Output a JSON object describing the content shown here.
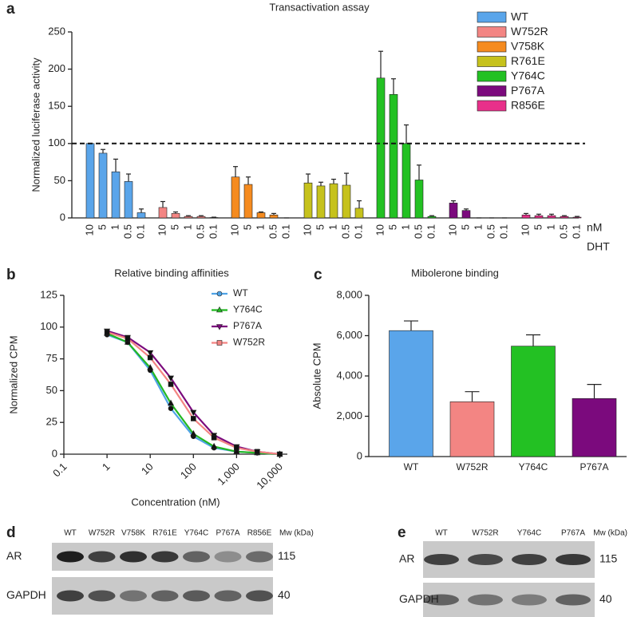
{
  "chart_data": [
    {
      "type": "bar",
      "panel": "a",
      "title": "Transactivation assay",
      "y_label": "Normalized luciferase activity",
      "categories": [
        "10",
        "5",
        "1",
        "0.5",
        "0.1"
      ],
      "x_unit_labels": [
        "nM",
        "DHT"
      ],
      "series": [
        {
          "name": "WT",
          "color": "#5aa5ea",
          "values": [
            100,
            87,
            62,
            49,
            7
          ],
          "errors": [
            0,
            5,
            17,
            10,
            5
          ]
        },
        {
          "name": "W752R",
          "color": "#f38583",
          "values": [
            14,
            6,
            2,
            2,
            0.5
          ],
          "errors": [
            8,
            2,
            1,
            1,
            0.5
          ]
        },
        {
          "name": "V758K",
          "color": "#f58b1f",
          "values": [
            55,
            45,
            7,
            4,
            0
          ],
          "errors": [
            14,
            10,
            1,
            2,
            0
          ]
        },
        {
          "name": "R761E",
          "color": "#c6c21c",
          "values": [
            47,
            43,
            46,
            44,
            13
          ],
          "errors": [
            12,
            5,
            6,
            16,
            10
          ]
        },
        {
          "name": "Y764C",
          "color": "#23c123",
          "values": [
            188,
            166,
            100,
            51,
            2
          ],
          "errors": [
            36,
            21,
            25,
            20,
            1
          ]
        },
        {
          "name": "P767A",
          "color": "#7b0a7d",
          "values": [
            20,
            10,
            0,
            0,
            0
          ],
          "errors": [
            3,
            2,
            0,
            0,
            0
          ]
        },
        {
          "name": "R856E",
          "color": "#e8308a",
          "values": [
            4,
            3,
            3,
            2,
            1
          ],
          "errors": [
            2,
            2,
            2,
            1,
            1
          ]
        }
      ],
      "ylim": [
        0,
        250
      ],
      "yticks": [
        0,
        50,
        100,
        150,
        200,
        250
      ],
      "reference_line": 100,
      "legend": "top-right"
    },
    {
      "type": "line",
      "panel": "b",
      "title": "Relative binding affinities",
      "x_label": "Concentration (nM)",
      "y_label": "Normalized CPM",
      "x": [
        1,
        3,
        10,
        30,
        100,
        300,
        1000,
        3000,
        10000
      ],
      "log_x": true,
      "series": [
        {
          "name": "WT",
          "color": "#4fa3e6",
          "marker": "circle",
          "values": [
            94,
            88,
            66,
            36,
            14,
            5,
            2,
            1,
            0
          ]
        },
        {
          "name": "Y764C",
          "color": "#22b822",
          "marker": "triangle",
          "values": [
            95,
            88,
            68,
            40,
            16,
            6,
            2,
            1,
            0
          ]
        },
        {
          "name": "P767A",
          "color": "#7b0a7d",
          "marker": "triangle-down",
          "values": [
            97,
            92,
            80,
            60,
            33,
            15,
            6,
            2,
            0
          ]
        },
        {
          "name": "W752R",
          "color": "#f38583",
          "marker": "square",
          "values": [
            96,
            91,
            76,
            55,
            28,
            13,
            5,
            2,
            0
          ]
        }
      ],
      "xlim": [
        0.1,
        15000
      ],
      "xticks": [
        0.1,
        1,
        10,
        100,
        {
          "value": 1000,
          "label": "1,000"
        },
        {
          "value": 10000,
          "label": "10,000"
        }
      ],
      "ylim": [
        0,
        125
      ],
      "yticks": [
        0,
        25,
        50,
        75,
        100,
        125
      ],
      "legend": "top-right"
    },
    {
      "type": "bar",
      "panel": "c",
      "title": "Mibolerone binding",
      "y_label": "Absolute CPM",
      "categories": [
        "WT",
        "W752R",
        "Y764C",
        "P767A"
      ],
      "values": [
        6250,
        2720,
        5480,
        2880
      ],
      "errors": [
        480,
        500,
        560,
        700
      ],
      "colors": [
        "#5aa5ea",
        "#f38583",
        "#23c123",
        "#7b0a7d"
      ],
      "ylim": [
        0,
        8000
      ],
      "yticks": [
        0,
        {
          "value": 2000,
          "label": "2,000"
        },
        {
          "value": 4000,
          "label": "4,000"
        },
        {
          "value": 6000,
          "label": "6,000"
        },
        {
          "value": 8000,
          "label": "8,000"
        }
      ]
    }
  ],
  "blots": [
    {
      "panel": "d",
      "lanes": [
        "WT",
        "W752R",
        "V758K",
        "R761E",
        "Y764C",
        "P767A",
        "R856E"
      ],
      "mw_header": "Mw (kDa)",
      "rows": [
        {
          "label": "AR",
          "mw": 115
        },
        {
          "label": "GAPDH",
          "mw": 40
        }
      ]
    },
    {
      "panel": "e",
      "lanes": [
        "WT",
        "W752R",
        "Y764C",
        "P767A"
      ],
      "mw_header": "Mw (kDa)",
      "rows": [
        {
          "label": "AR",
          "mw": 115
        },
        {
          "label": "GAPDH",
          "mw": 40
        }
      ]
    }
  ]
}
